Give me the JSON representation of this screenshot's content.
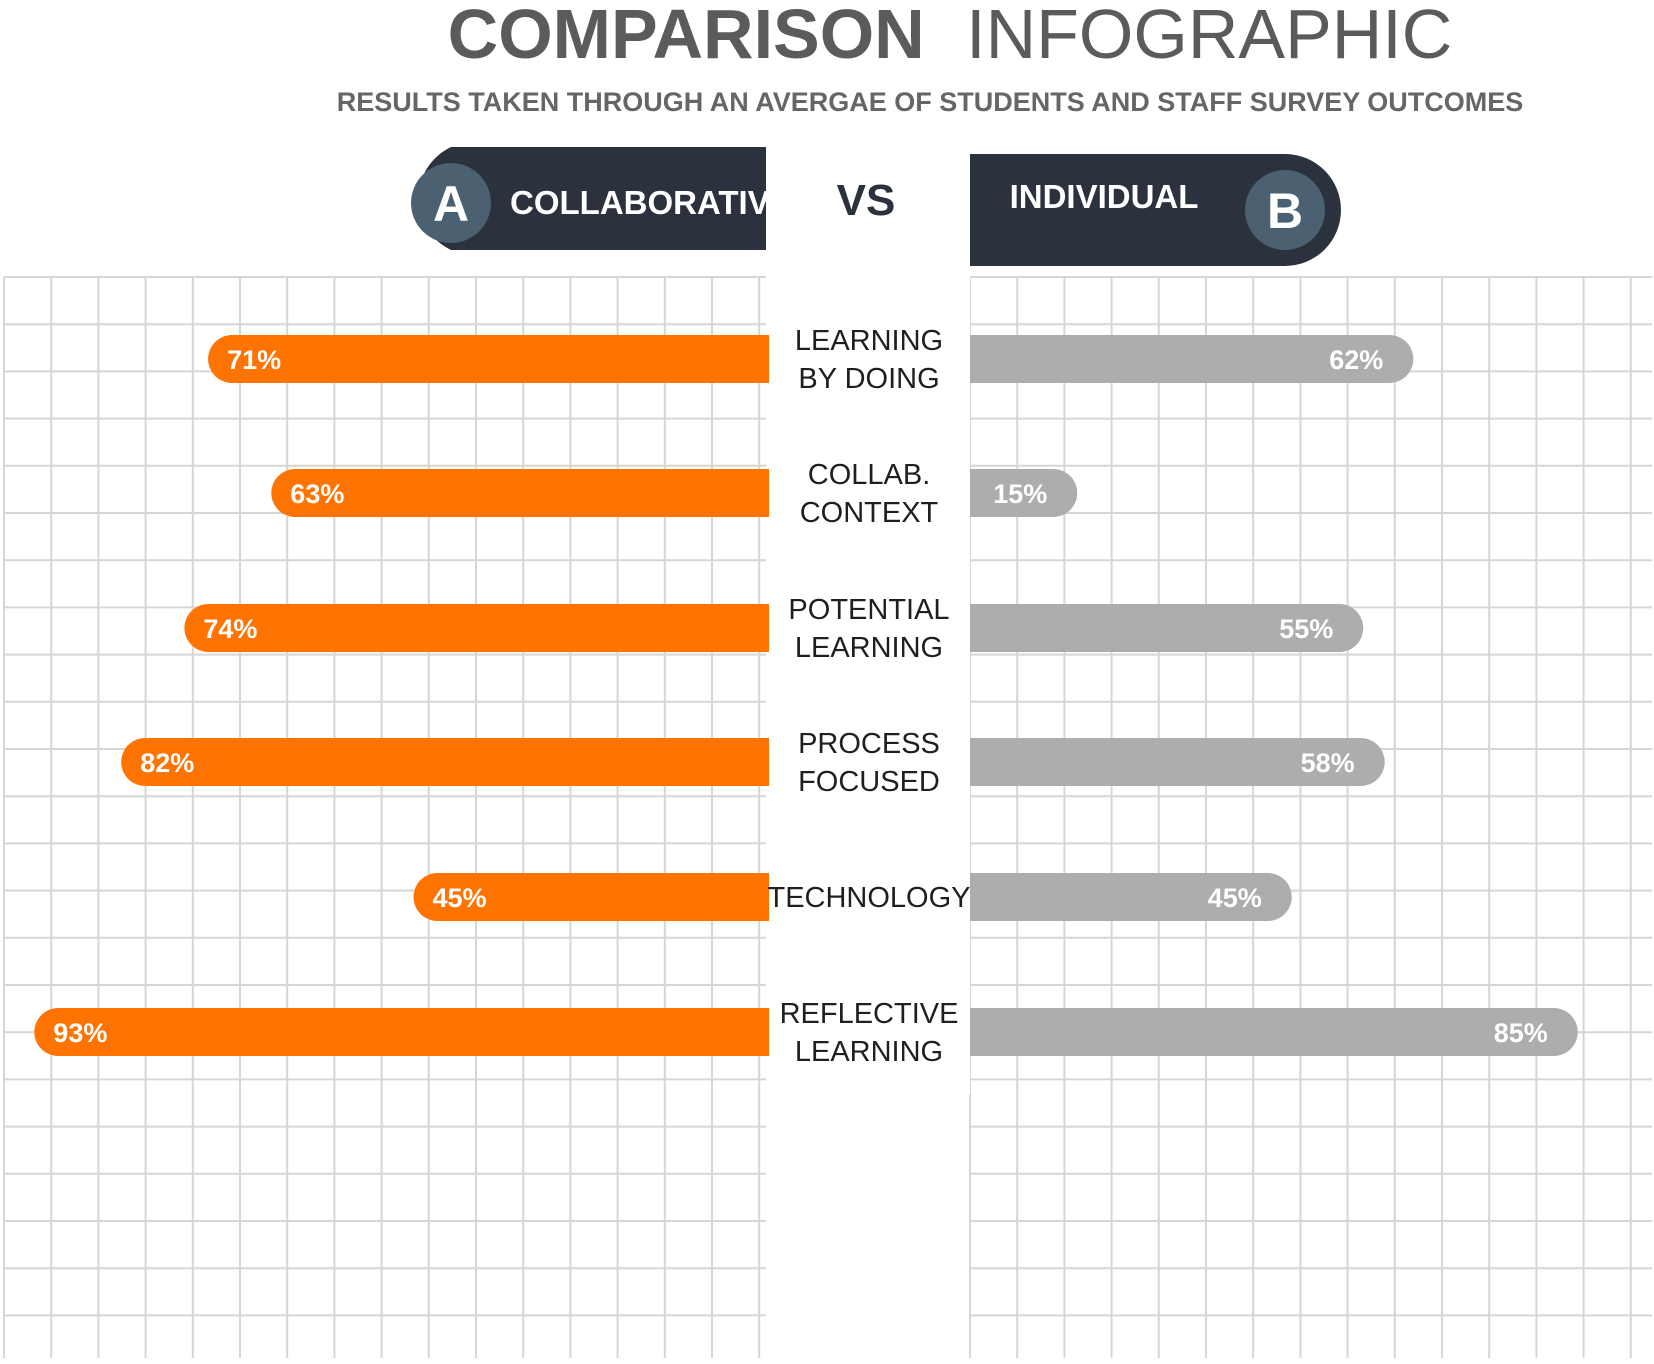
{
  "header": {
    "title_bold": "COMPARISON",
    "title_light": "INFOGRAPHIC",
    "subtitle": "RESULTS TAKEN THROUGH AN AVERGAE OF STUDENTS AND STAFF SURVEY OUTCOMES"
  },
  "versus": {
    "left": {
      "badge": "A",
      "label": "COLLABORATIVE"
    },
    "middle": "VS",
    "right": {
      "badge": "B",
      "label": "INDIVIDUAL"
    }
  },
  "colors": {
    "left_bar": "#ff7300",
    "right_bar": "#adadad",
    "pill": "#2b313d",
    "badge": "#4b6070",
    "grid": "#d6d6d6"
  },
  "chart_data": {
    "type": "bar",
    "orientation": "horizontal-diverging",
    "title": "COMPARISON INFOGRAPHIC",
    "subtitle": "RESULTS TAKEN THROUGH AN AVERGAE OF STUDENTS AND STAFF SURVEY OUTCOMES",
    "categories": [
      [
        "LEARNING",
        "BY DOING"
      ],
      [
        "COLLAB.",
        "CONTEXT"
      ],
      [
        "POTENTIAL",
        "LEARNING"
      ],
      [
        "PROCESS",
        "FOCUSED"
      ],
      [
        "TECHNOLOGY"
      ],
      [
        "REFLECTIVE",
        "LEARNING"
      ]
    ],
    "series": [
      {
        "name": "COLLABORATIVE",
        "values": [
          71,
          63,
          74,
          82,
          45,
          93
        ],
        "labels": [
          "71%",
          "63%",
          "74%",
          "82%",
          "45%",
          "93%"
        ]
      },
      {
        "name": "INDIVIDUAL",
        "values": [
          62,
          15,
          55,
          58,
          45,
          85
        ],
        "labels": [
          "62%",
          "15%",
          "55%",
          "58%",
          "45%",
          "85%"
        ]
      }
    ],
    "unit": "%",
    "grid": true
  }
}
